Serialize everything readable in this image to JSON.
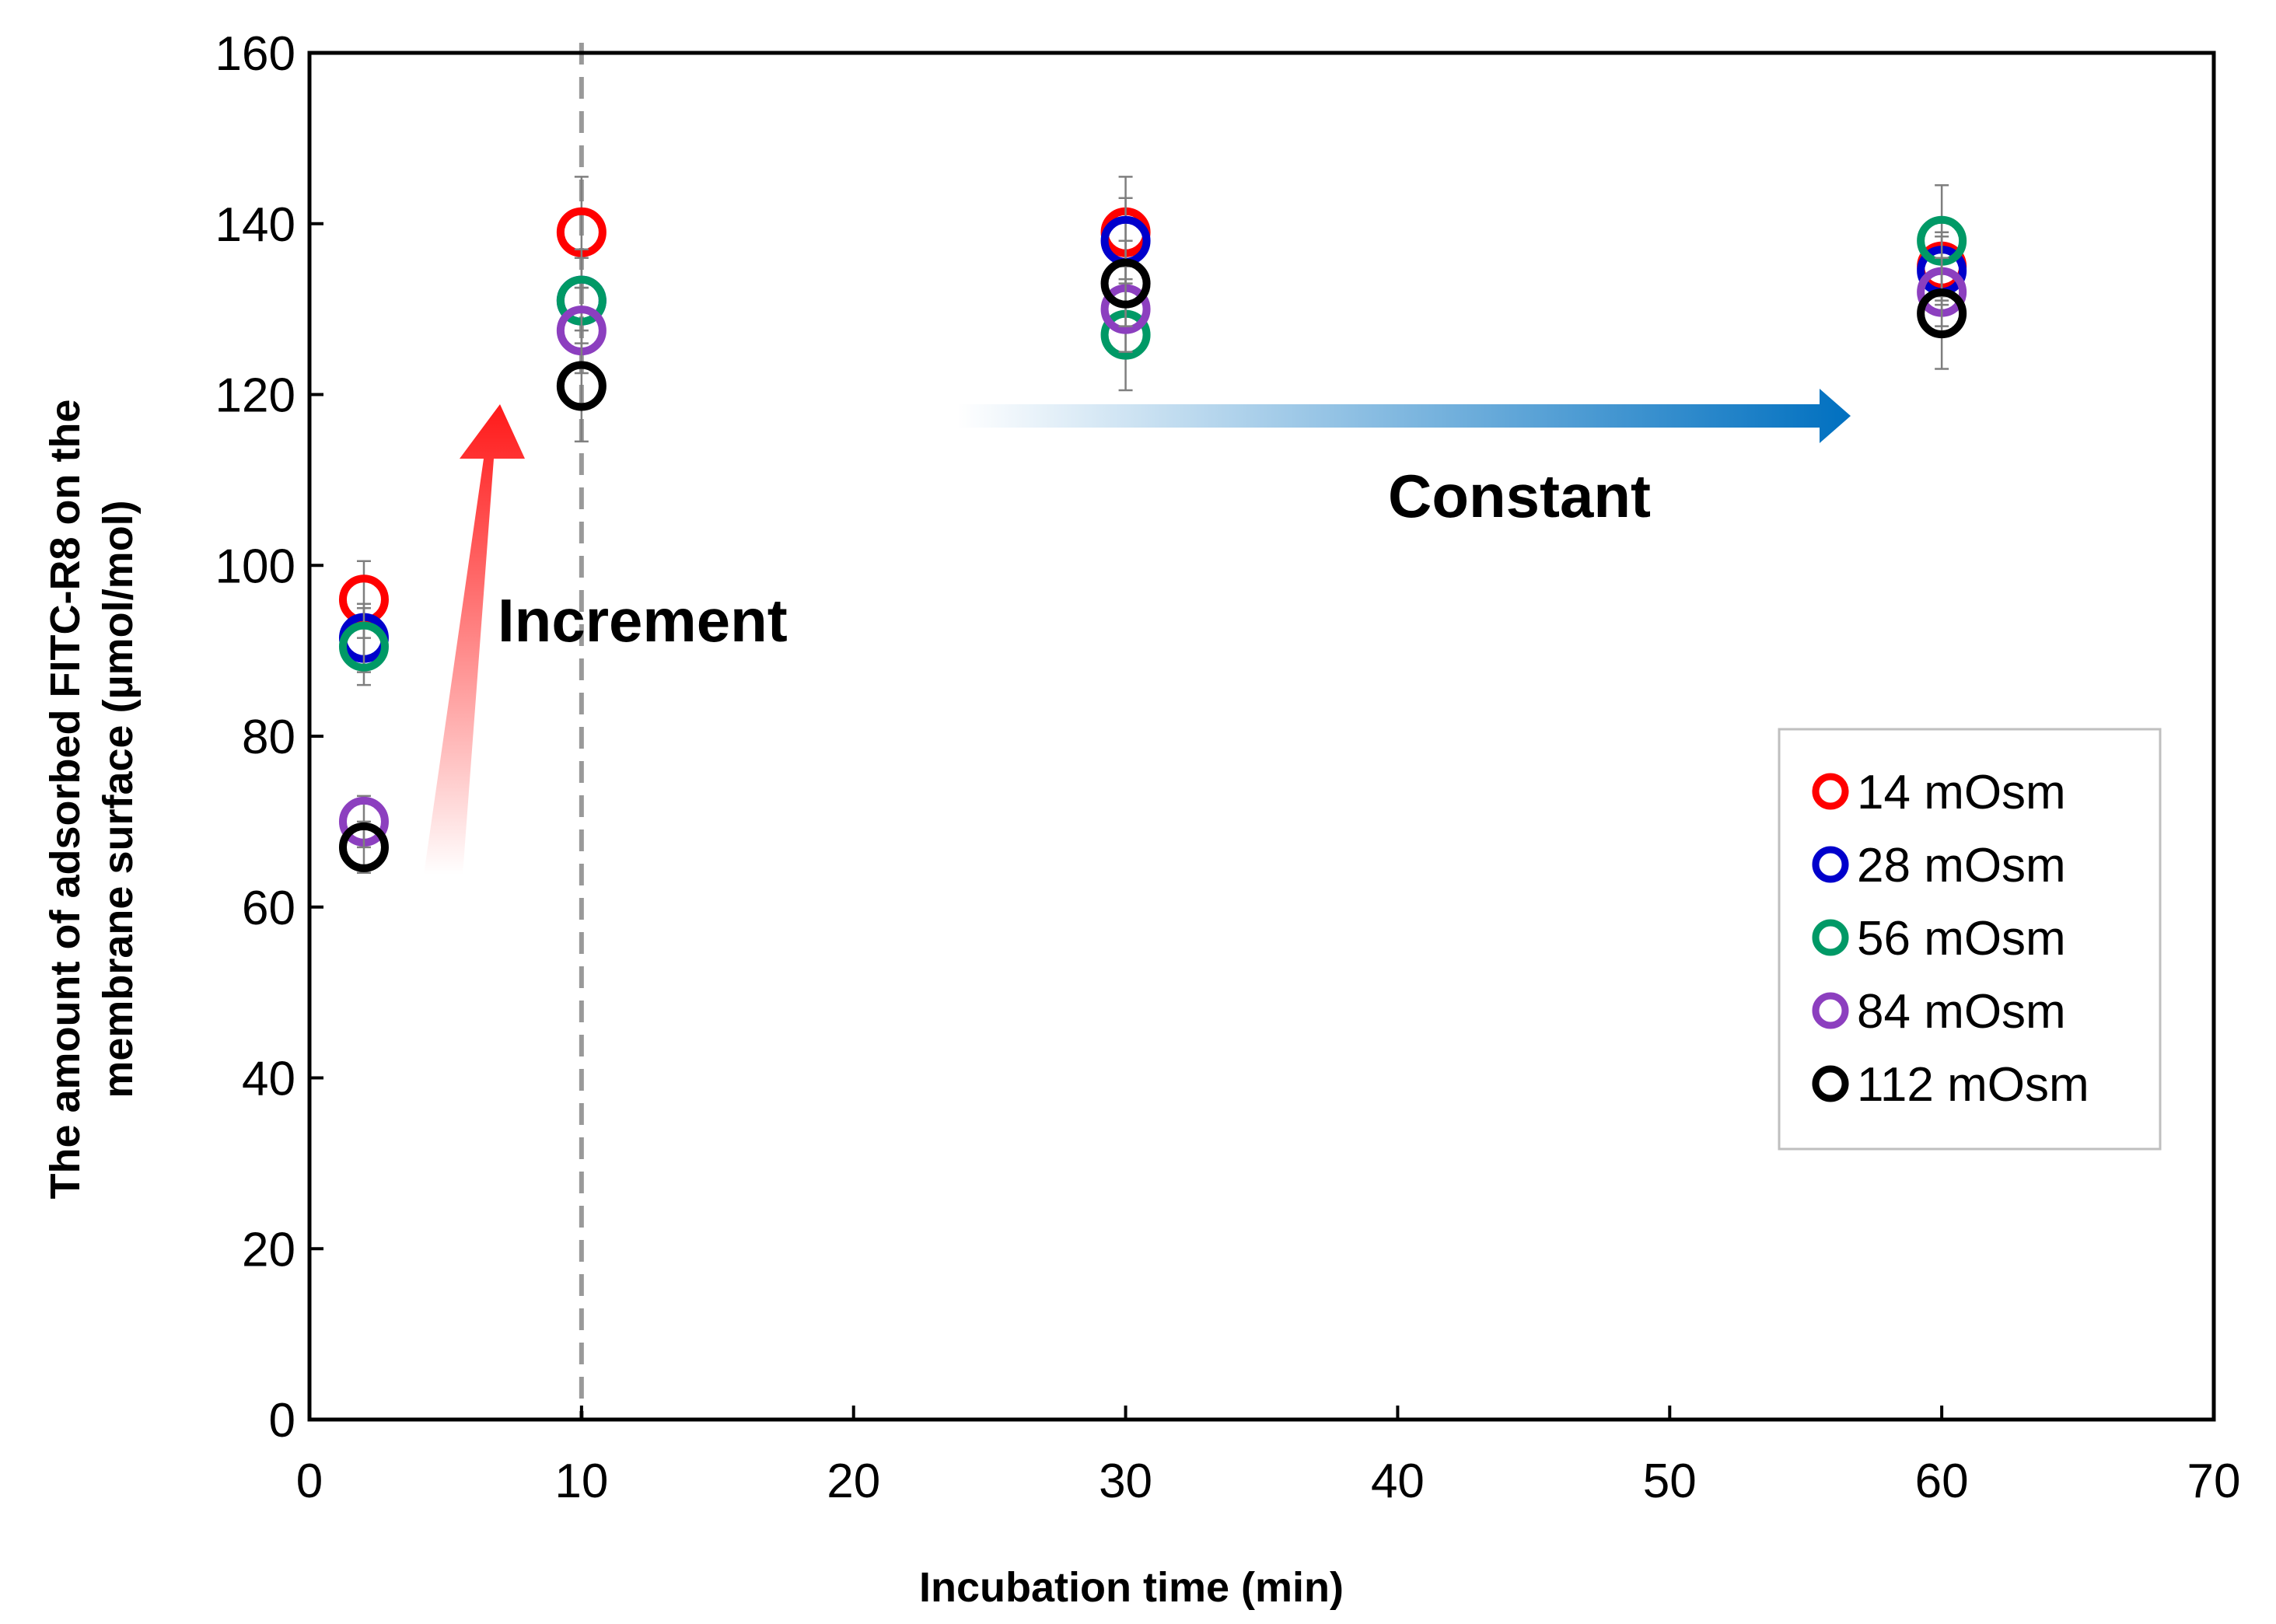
{
  "chart_data": {
    "type": "scatter",
    "title": "",
    "xlabel": "Incubation time (min)",
    "ylabel_lines": [
      "The amount of adsorbed FITC-R8 on the",
      "membrane surface (µmol/mol)"
    ],
    "xlim": [
      0,
      70
    ],
    "ylim": [
      0,
      160
    ],
    "xticks": [
      0,
      10,
      20,
      30,
      40,
      50,
      60,
      70
    ],
    "yticks": [
      0,
      20,
      40,
      60,
      80,
      100,
      120,
      140,
      160
    ],
    "grid": false,
    "legend_position": "right",
    "x": [
      2,
      10,
      30,
      60
    ],
    "series": [
      {
        "name": "14 mOsm",
        "color": "#ff0000",
        "values": [
          96,
          139,
          139,
          135
        ],
        "errors": [
          4.5,
          6.5,
          6.5,
          4
        ]
      },
      {
        "name": "28 mOsm",
        "color": "#0000cc",
        "values": [
          91.5,
          131,
          138,
          134.5
        ],
        "errors": [
          4,
          5,
          5,
          4
        ]
      },
      {
        "name": "56 mOsm",
        "color": "#009966",
        "values": [
          90.5,
          131,
          127,
          138
        ],
        "errors": [
          4.5,
          6,
          6.5,
          6.5
        ]
      },
      {
        "name": "84 mOsm",
        "color": "#8c3fbf",
        "values": [
          70,
          127.5,
          130,
          132
        ],
        "errors": [
          3,
          5,
          5,
          4
        ]
      },
      {
        "name": "112 mOsm",
        "color": "#000000",
        "values": [
          67,
          121,
          133,
          129.5
        ],
        "errors": [
          3,
          6.5,
          5,
          6.5
        ]
      }
    ],
    "annotations": {
      "increment": "Increment",
      "constant": "Constant",
      "divider_x": 10
    }
  }
}
